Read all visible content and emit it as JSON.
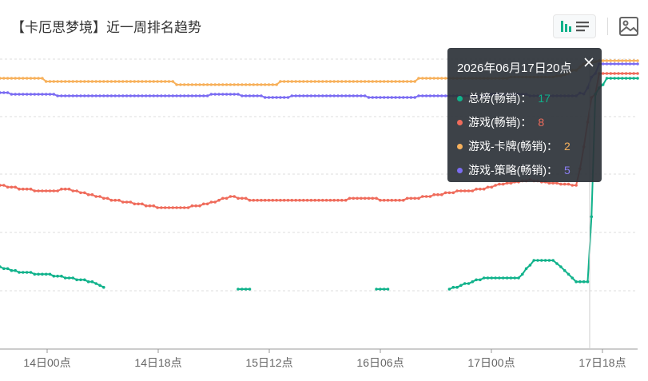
{
  "header": {
    "title": "【卡厄思梦境】近一周排名趋势"
  },
  "toolbar": {
    "chart_mode_icon": "bar-chart-icon",
    "list_mode_icon": "list-icon",
    "image_icon": "image-icon"
  },
  "tooltip": {
    "title": "2026年06月17日20点",
    "close_icon": "close-icon",
    "rows": [
      {
        "label": "总榜(畅销)：",
        "value": "17",
        "color": "#10b28b"
      },
      {
        "label": "游戏(畅销)：",
        "value": "8",
        "color": "#ef6b5b"
      },
      {
        "label": "游戏-卡牌(畅销)：",
        "value": "2",
        "color": "#f7b15c"
      },
      {
        "label": "游戏-策略(畅销)：",
        "value": "5",
        "color": "#7b6cf2"
      }
    ]
  },
  "chart_data": {
    "type": "line",
    "x_tick_labels": [
      "14日00点",
      "14日18点",
      "15日12点",
      "16日06点",
      "17日00点",
      "17日18点"
    ],
    "y_axis_inverted": true,
    "grid": true,
    "series": [
      {
        "name": "游戏-卡牌(畅销)",
        "color": "#f7b15c",
        "values": [
          [
            0,
            12
          ],
          [
            12,
            12.5
          ],
          [
            24,
            13
          ],
          [
            36,
            13
          ],
          [
            46,
            13.5
          ],
          [
            48,
            14
          ],
          [
            60,
            14
          ],
          [
            72,
            13.5
          ],
          [
            84,
            13
          ],
          [
            96,
            13
          ],
          [
            108,
            12.5
          ],
          [
            120,
            12
          ],
          [
            132,
            11.5
          ],
          [
            144,
            11
          ],
          [
            156,
            2
          ],
          [
            166,
            2
          ]
        ]
      },
      {
        "name": "游戏-策略(畅销)",
        "color": "#7b6cf2",
        "values": [
          [
            0,
            22
          ],
          [
            6,
            23
          ],
          [
            12,
            23
          ],
          [
            18,
            24
          ],
          [
            24,
            24
          ],
          [
            36,
            24
          ],
          [
            48,
            24
          ],
          [
            60,
            23
          ],
          [
            66,
            24
          ],
          [
            72,
            25
          ],
          [
            78,
            24
          ],
          [
            96,
            24.5
          ],
          [
            108,
            24.5
          ],
          [
            120,
            24
          ],
          [
            132,
            23
          ],
          [
            144,
            24
          ],
          [
            150,
            24
          ],
          [
            156,
            5
          ],
          [
            166,
            5
          ]
        ]
      },
      {
        "name": "游戏(畅销)",
        "color": "#ef6b5b",
        "values": [
          [
            0,
            60
          ],
          [
            6,
            62
          ],
          [
            12,
            63
          ],
          [
            18,
            62
          ],
          [
            24,
            65
          ],
          [
            30,
            68
          ],
          [
            36,
            70
          ],
          [
            42,
            72
          ],
          [
            48,
            72
          ],
          [
            54,
            70
          ],
          [
            60,
            66
          ],
          [
            66,
            68
          ],
          [
            72,
            68
          ],
          [
            84,
            68
          ],
          [
            96,
            67
          ],
          [
            102,
            68
          ],
          [
            108,
            67
          ],
          [
            114,
            65
          ],
          [
            120,
            63
          ],
          [
            126,
            62
          ],
          [
            132,
            58
          ],
          [
            138,
            55
          ],
          [
            144,
            58
          ],
          [
            150,
            60
          ],
          [
            156,
            8
          ],
          [
            166,
            8
          ]
        ]
      },
      {
        "name": "总榜(畅销)",
        "color": "#10b28b",
        "values": [
          [
            0,
            140
          ],
          [
            6,
            143
          ],
          [
            12,
            144
          ],
          [
            18,
            146
          ],
          [
            24,
            148
          ],
          [
            28,
            152
          ],
          [
            30,
            null
          ],
          [
            62,
            152
          ],
          [
            66,
            152
          ],
          [
            67,
            null
          ],
          [
            98,
            152
          ],
          [
            102,
            152
          ],
          [
            103,
            null
          ],
          [
            117,
            152
          ],
          [
            120,
            150
          ],
          [
            126,
            146
          ],
          [
            135,
            146
          ],
          [
            139,
            136
          ],
          [
            144,
            136
          ],
          [
            147,
            142
          ],
          [
            150,
            148
          ],
          [
            153,
            148
          ],
          [
            155,
            17
          ],
          [
            158,
            12
          ],
          [
            166,
            12
          ]
        ]
      }
    ]
  }
}
